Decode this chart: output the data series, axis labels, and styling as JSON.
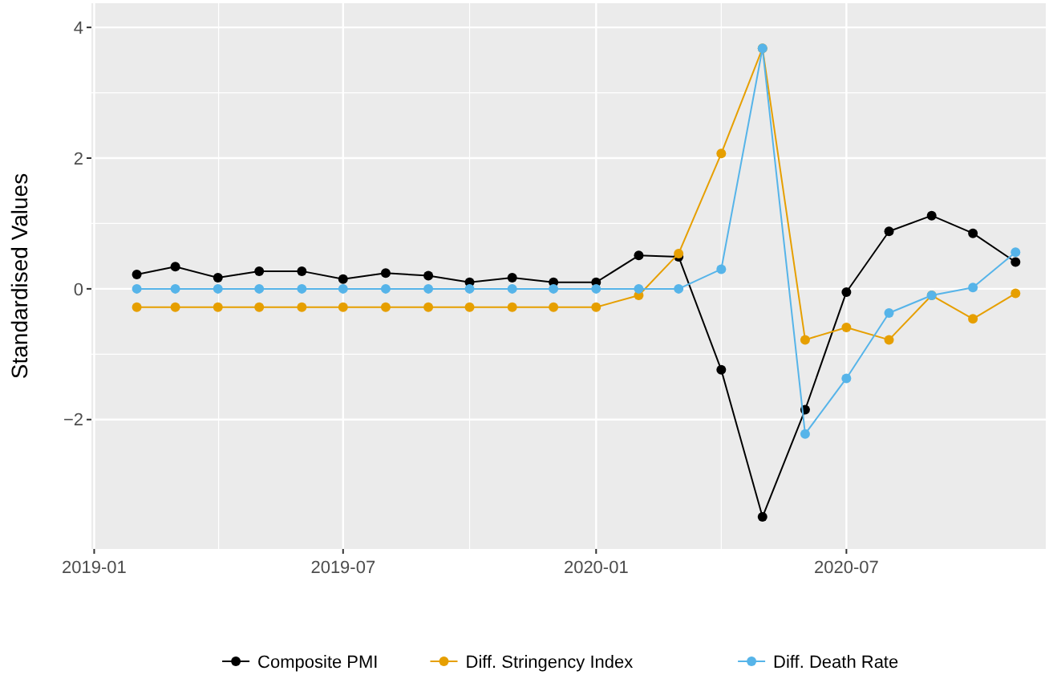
{
  "chart_data": {
    "type": "line",
    "ylabel": "Standardised Values",
    "x": [
      "2019-02-01",
      "2019-03-01",
      "2019-04-01",
      "2019-05-01",
      "2019-06-01",
      "2019-07-01",
      "2019-08-01",
      "2019-09-01",
      "2019-10-01",
      "2019-11-01",
      "2019-12-01",
      "2020-01-01",
      "2020-02-01",
      "2020-03-01",
      "2020-04-01",
      "2020-05-01",
      "2020-06-01",
      "2020-07-01",
      "2020-08-01",
      "2020-09-01",
      "2020-10-01",
      "2020-11-01"
    ],
    "series": [
      {
        "name": "Composite PMI",
        "color": "#000000",
        "values": [
          0.22,
          0.34,
          0.17,
          0.27,
          0.27,
          0.15,
          0.24,
          0.2,
          0.1,
          0.17,
          0.1,
          0.1,
          0.51,
          0.49,
          -1.24,
          -3.49,
          -1.85,
          -0.05,
          0.88,
          1.12,
          0.85,
          0.41
        ]
      },
      {
        "name": "Diff. Stringency Index",
        "color": "#e69f00",
        "values": [
          -0.28,
          -0.28,
          -0.28,
          -0.28,
          -0.28,
          -0.28,
          -0.28,
          -0.28,
          -0.28,
          -0.28,
          -0.28,
          -0.28,
          -0.1,
          0.54,
          2.07,
          3.68,
          -0.78,
          -0.59,
          -0.78,
          -0.1,
          -0.46,
          -0.07
        ]
      },
      {
        "name": "Diff. Death Rate",
        "color": "#56b4e9",
        "values": [
          0,
          0,
          0,
          0,
          0,
          0,
          0,
          0,
          0,
          0,
          0,
          0,
          0,
          0,
          0.3,
          3.68,
          -2.22,
          -1.37,
          -0.37,
          -0.1,
          0.02,
          0.56
        ]
      }
    ],
    "xlim": [
      "2018-12-30",
      "2020-11-23"
    ],
    "xticks": [
      {
        "value": "2019-01-01",
        "label": "2019-01"
      },
      {
        "value": "2019-07-01",
        "label": "2019-07"
      },
      {
        "value": "2020-01-01",
        "label": "2020-01"
      },
      {
        "value": "2020-07-01",
        "label": "2020-07"
      }
    ],
    "ylim": [
      -3.98,
      4.37
    ],
    "yticks": [
      {
        "value": -2,
        "label": "−2"
      },
      0,
      2,
      4
    ],
    "grid": true,
    "legend": "bottom",
    "marker": "circle",
    "line_style": "solid"
  }
}
